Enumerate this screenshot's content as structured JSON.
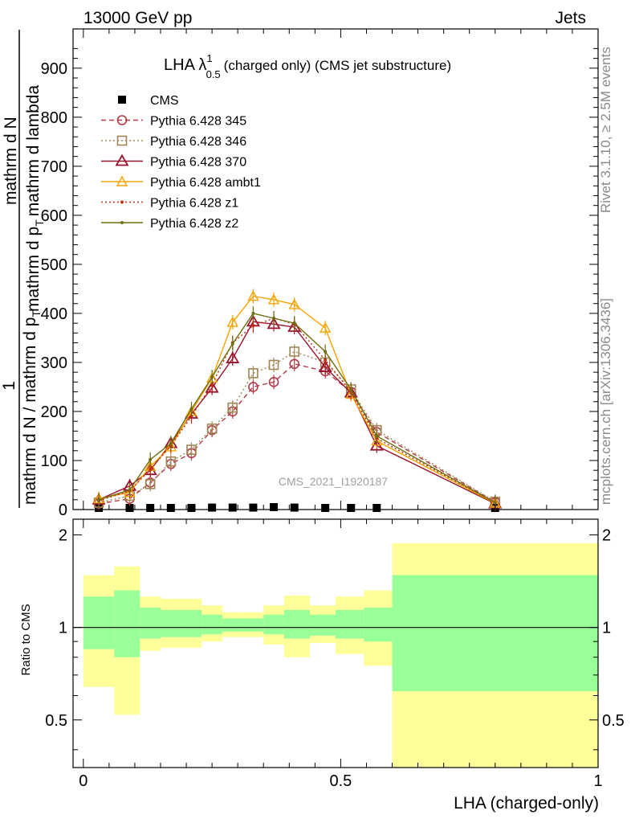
{
  "header": {
    "left": "13000 GeV pp",
    "right": "Jets"
  },
  "side_labels": {
    "rivet": "Rivet 3.1.10, ≥ 2.5M events",
    "mcplots": "mcplots.cern.ch [arXiv:1306.3436]"
  },
  "watermark": "CMS_2021_I1920187",
  "chart_data": [
    {
      "type": "line",
      "title_main": "LHA λ",
      "title_sup": "1",
      "title_sub": "0.5",
      "title_rest": "(charged only) (CMS jet substructure)",
      "ylabel_parts": [
        "1",
        "mathrm d N / mathrm d p",
        "T",
        "mathrm d N",
        "mathrm d p",
        "T",
        "mathrm d lambda"
      ],
      "ylim": [
        0,
        980
      ],
      "yticks": [
        0,
        100,
        200,
        300,
        400,
        500,
        600,
        700,
        800,
        900
      ],
      "xlim": [
        -0.02,
        1.0
      ],
      "x": [
        0.03,
        0.09,
        0.13,
        0.17,
        0.21,
        0.25,
        0.29,
        0.33,
        0.37,
        0.41,
        0.47,
        0.52,
        0.57,
        0.8
      ],
      "legend_position": "top-left",
      "series": [
        {
          "name": "CMS",
          "color": "#000000",
          "style": "marker",
          "marker": "square",
          "values": [
            1,
            1,
            1,
            2,
            3,
            4,
            4,
            4,
            5,
            4,
            3,
            2,
            1,
            0
          ]
        },
        {
          "name": "Pythia 6.428 345",
          "color": "#b23a48",
          "style": "dashed",
          "marker": "circle",
          "values": [
            12,
            22,
            55,
            93,
            115,
            162,
            200,
            250,
            260,
            297,
            282,
            240,
            158,
            15
          ]
        },
        {
          "name": "Pythia 6.428 346",
          "color": "#a08656",
          "style": "dotted",
          "marker": "square-open",
          "values": [
            14,
            28,
            52,
            98,
            122,
            165,
            208,
            278,
            295,
            322,
            300,
            245,
            162,
            16
          ]
        },
        {
          "name": "Pythia 6.428 370",
          "color": "#99152d",
          "style": "solid",
          "marker": "triangle",
          "values": [
            20,
            48,
            80,
            135,
            195,
            248,
            308,
            383,
            378,
            372,
            290,
            238,
            130,
            12
          ]
        },
        {
          "name": "Pythia 6.428 ambt1",
          "color": "#f5a400",
          "style": "solid",
          "marker": "triangle-open",
          "values": [
            22,
            35,
            88,
            128,
            200,
            268,
            382,
            435,
            428,
            418,
            370,
            235,
            140,
            13
          ]
        },
        {
          "name": "Pythia 6.428 z1",
          "color": "#c22a10",
          "style": "dotted",
          "marker": "dot",
          "values": [
            18,
            38,
            82,
            130,
            190,
            255,
            340,
            375,
            390,
            378,
            305,
            240,
            145,
            14
          ]
        },
        {
          "name": "Pythia 6.428 z2",
          "color": "#6f6f10",
          "style": "solid",
          "marker": "dot",
          "values": [
            20,
            40,
            102,
            135,
            205,
            270,
            338,
            400,
            390,
            380,
            322,
            245,
            150,
            14
          ]
        }
      ]
    },
    {
      "type": "area",
      "ylabel": "Ratio to CMS",
      "xlabel": "LHA (charged-only)",
      "xlim": [
        -0.02,
        1.0
      ],
      "ylim": [
        0.35,
        2.25
      ],
      "yticks": [
        0.5,
        1,
        2
      ],
      "xticks": [
        0,
        0.5,
        1
      ],
      "reference_line": 1.0,
      "bands": [
        {
          "x0": 0.0,
          "x1": 0.06,
          "inner": [
            0.85,
            1.26
          ],
          "outer": [
            0.64,
            1.48
          ]
        },
        {
          "x0": 0.06,
          "x1": 0.11,
          "inner": [
            0.8,
            1.32
          ],
          "outer": [
            0.52,
            1.58
          ]
        },
        {
          "x0": 0.11,
          "x1": 0.15,
          "inner": [
            0.92,
            1.16
          ],
          "outer": [
            0.84,
            1.26
          ]
        },
        {
          "x0": 0.15,
          "x1": 0.19,
          "inner": [
            0.93,
            1.14
          ],
          "outer": [
            0.86,
            1.24
          ]
        },
        {
          "x0": 0.19,
          "x1": 0.23,
          "inner": [
            0.93,
            1.14
          ],
          "outer": [
            0.86,
            1.24
          ]
        },
        {
          "x0": 0.23,
          "x1": 0.27,
          "inner": [
            0.95,
            1.1
          ],
          "outer": [
            0.9,
            1.18
          ]
        },
        {
          "x0": 0.27,
          "x1": 0.31,
          "inner": [
            0.97,
            1.07
          ],
          "outer": [
            0.93,
            1.12
          ]
        },
        {
          "x0": 0.31,
          "x1": 0.35,
          "inner": [
            0.97,
            1.07
          ],
          "outer": [
            0.93,
            1.12
          ]
        },
        {
          "x0": 0.35,
          "x1": 0.39,
          "inner": [
            0.95,
            1.1
          ],
          "outer": [
            0.88,
            1.18
          ]
        },
        {
          "x0": 0.39,
          "x1": 0.44,
          "inner": [
            0.92,
            1.14
          ],
          "outer": [
            0.8,
            1.27
          ]
        },
        {
          "x0": 0.44,
          "x1": 0.49,
          "inner": [
            0.94,
            1.1
          ],
          "outer": [
            0.89,
            1.18
          ]
        },
        {
          "x0": 0.49,
          "x1": 0.545,
          "inner": [
            0.92,
            1.14
          ],
          "outer": [
            0.82,
            1.26
          ]
        },
        {
          "x0": 0.545,
          "x1": 0.6,
          "inner": [
            0.9,
            1.16
          ],
          "outer": [
            0.75,
            1.32
          ]
        },
        {
          "x0": 0.6,
          "x1": 1.0,
          "inner": [
            0.62,
            1.48
          ],
          "outer": [
            0.35,
            1.88
          ]
        }
      ],
      "band_colors": {
        "inner": "#99ff99",
        "outer": "#ffff99"
      }
    }
  ]
}
